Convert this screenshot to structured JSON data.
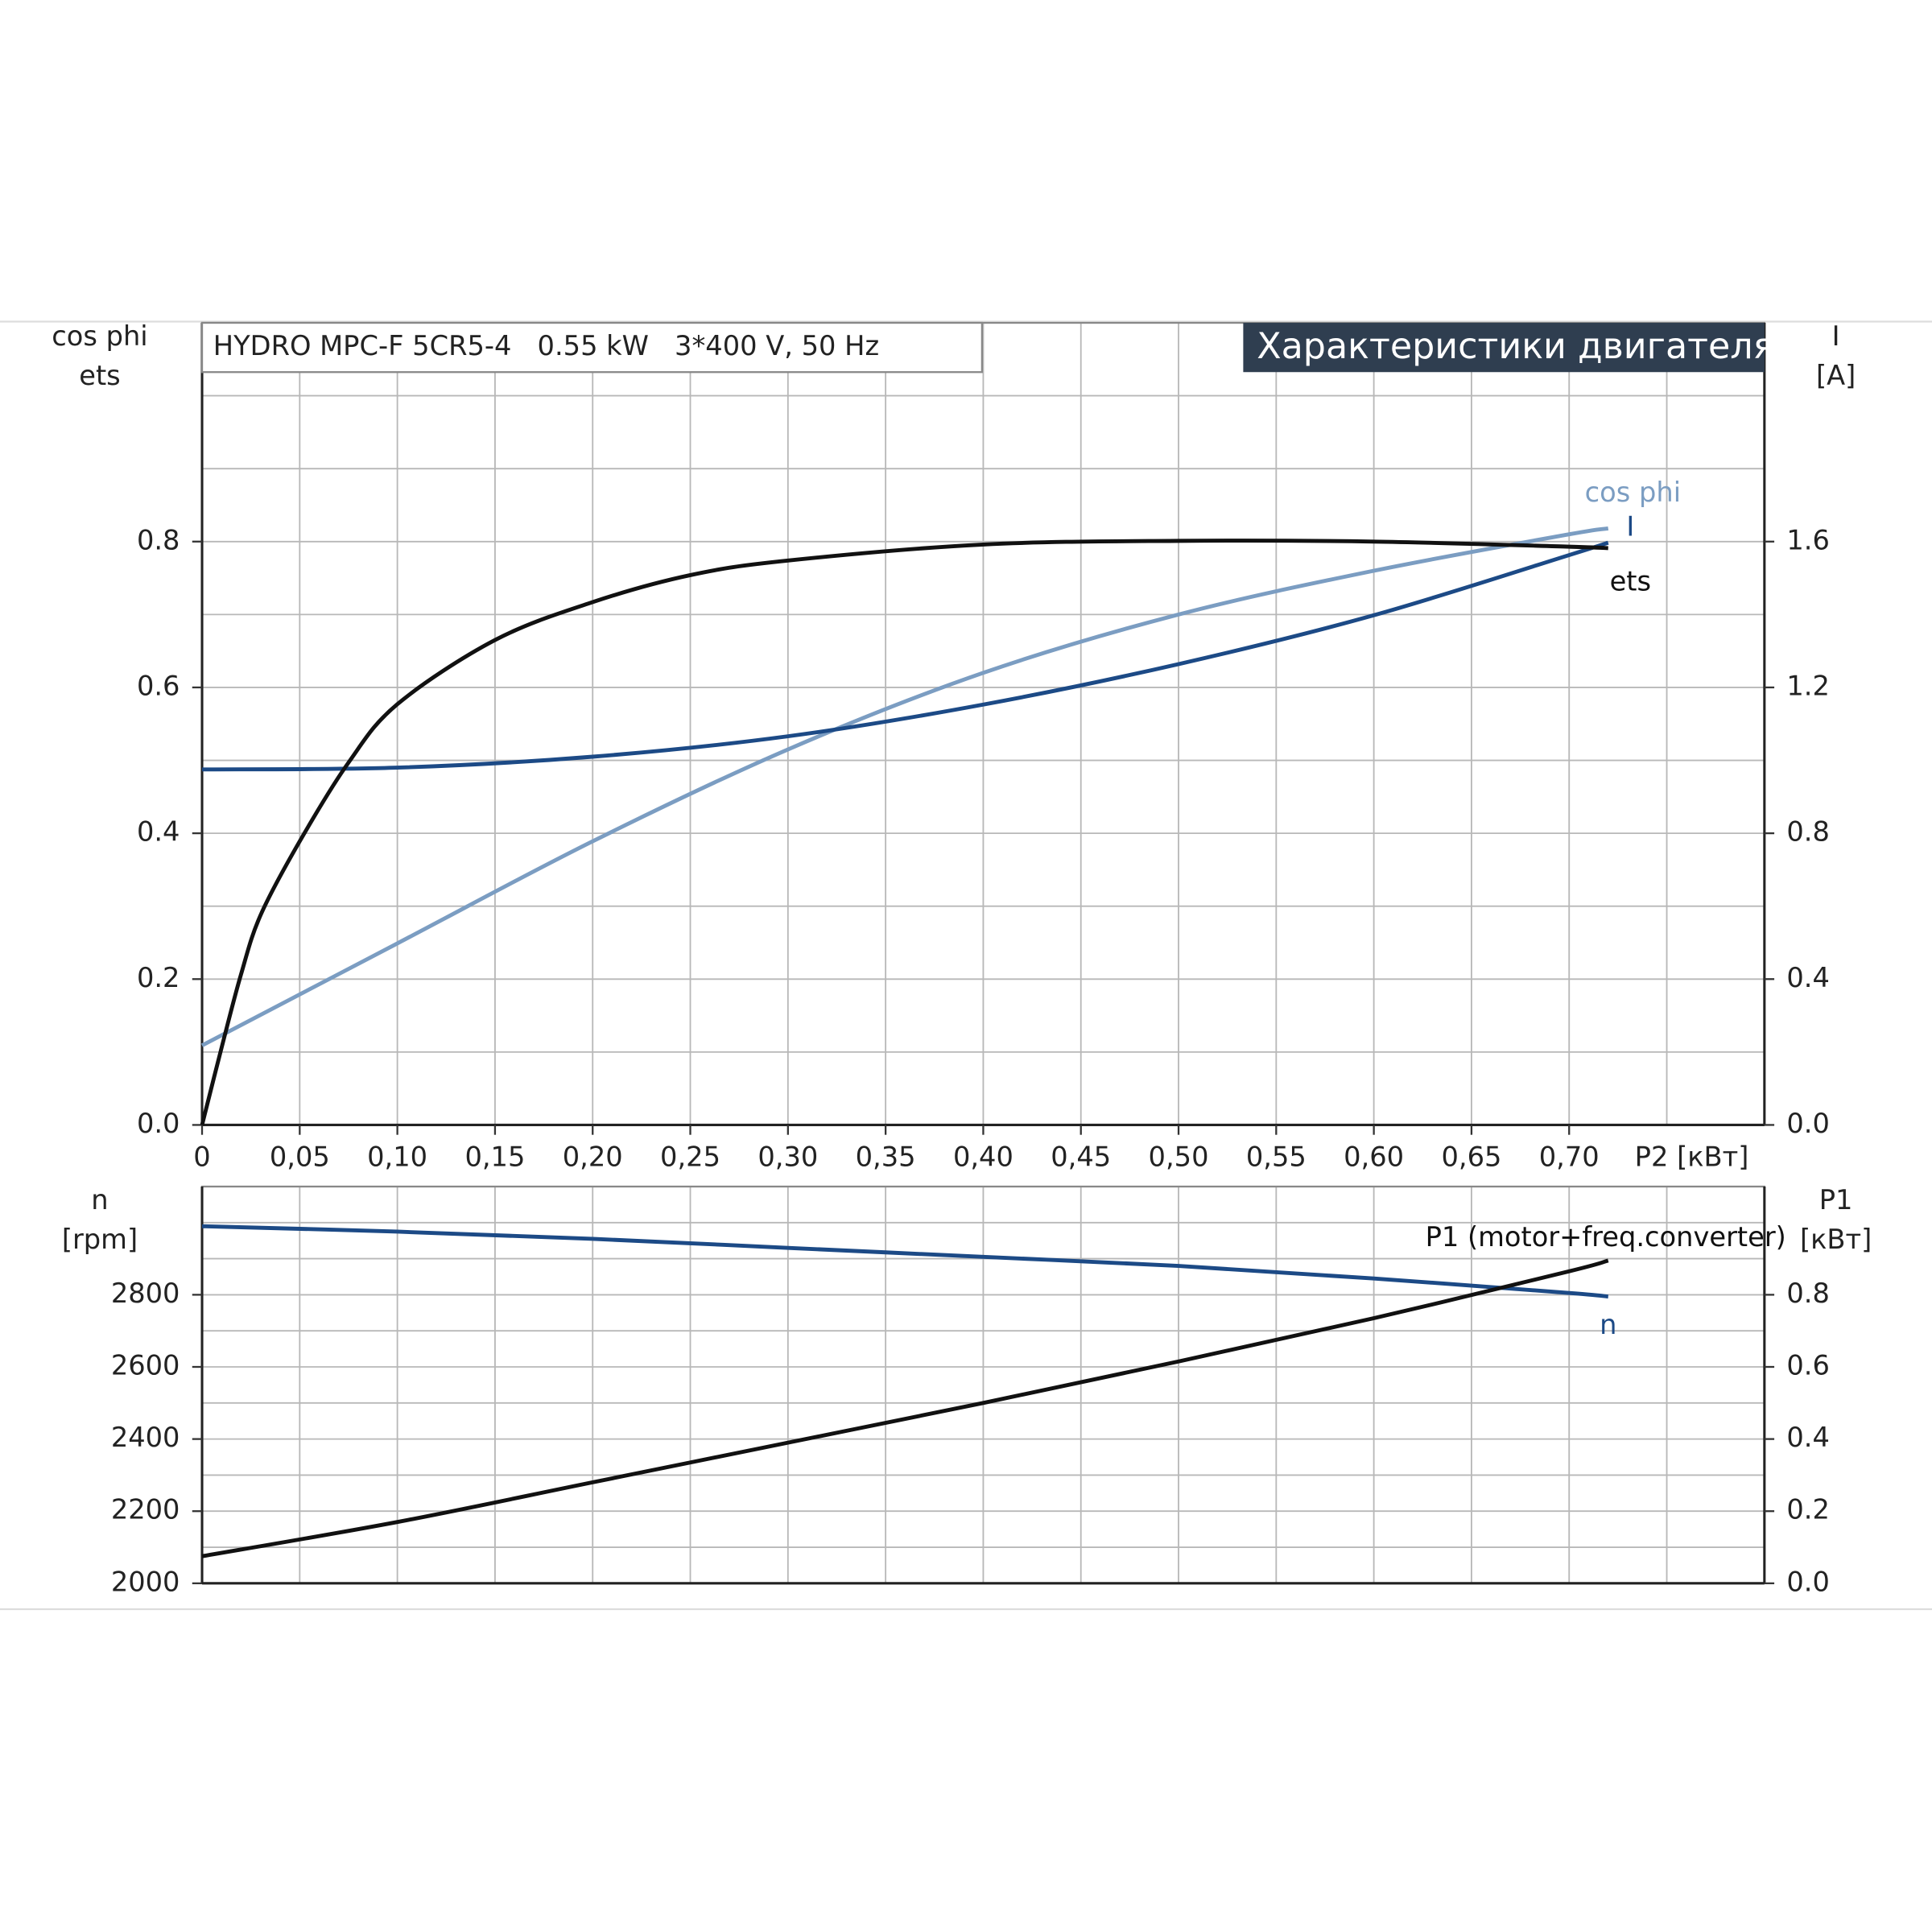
{
  "chart_data": [
    {
      "type": "line",
      "title": "HYDRO MPC-F 5CR5-4   0.55 kW   3*400 V, 50 Hz",
      "banner": "Характеристики двигателя",
      "ylabel": [
        "cos phi",
        "ets"
      ],
      "y2label": [
        "I",
        "[A]"
      ],
      "xlabel": "P2 [кВт]",
      "xlim": [
        0,
        0.8
      ],
      "xticks": [
        0,
        {
          "value": 0.05,
          "label": "0,05"
        },
        {
          "value": 0.1,
          "label": "0,10"
        },
        {
          "value": 0.15,
          "label": "0,15"
        },
        {
          "value": 0.2,
          "label": "0,20"
        },
        {
          "value": 0.25,
          "label": "0,25"
        },
        {
          "value": 0.3,
          "label": "0,30"
        },
        {
          "value": 0.35,
          "label": "0,35"
        },
        {
          "value": 0.4,
          "label": "0,40"
        },
        {
          "value": 0.45,
          "label": "0,45"
        },
        {
          "value": 0.5,
          "label": "0,50"
        },
        {
          "value": 0.55,
          "label": "0,55"
        },
        {
          "value": 0.6,
          "label": "0,60"
        },
        {
          "value": 0.65,
          "label": "0,65"
        },
        {
          "value": 0.7,
          "label": "0,70"
        }
      ],
      "xgrid": [
        0.75
      ],
      "ylim": [
        0,
        1.1
      ],
      "yticks": [
        {
          "value": 0,
          "label": "0.0"
        },
        0.2,
        0.4,
        0.6,
        0.8
      ],
      "ygrid": [
        0.1,
        0.3,
        0.5,
        0.7,
        0.9,
        1.0
      ],
      "y2lim": [
        0,
        2.2
      ],
      "y2ticks": [
        {
          "value": 0,
          "label": "0.0"
        },
        0.4,
        0.8,
        1.2,
        1.6
      ],
      "grid": true,
      "series": [
        {
          "name": "cos phi",
          "color": "#7b9dc2",
          "x": [
            0,
            0.1,
            0.2,
            0.3,
            0.4,
            0.5,
            0.6,
            0.7,
            0.72
          ],
          "values": [
            0.109,
            0.249,
            0.389,
            0.515,
            0.62,
            0.7,
            0.76,
            0.81,
            0.818
          ]
        },
        {
          "name": "I",
          "color": "#1c4a86",
          "axis": "y2",
          "x": [
            0,
            0.1,
            0.2,
            0.3,
            0.4,
            0.5,
            0.6,
            0.7,
            0.72
          ],
          "values": [
            0.975,
            0.98,
            1.01,
            1.066,
            1.153,
            1.264,
            1.398,
            1.563,
            1.597
          ]
        },
        {
          "name": "ets",
          "color": "#111111",
          "x": [
            0,
            0.01,
            0.02,
            0.03,
            0.05,
            0.075,
            0.1,
            0.15,
            0.2,
            0.25,
            0.3,
            0.4,
            0.5,
            0.6,
            0.7,
            0.72
          ],
          "values": [
            0,
            0.106,
            0.207,
            0.288,
            0.389,
            0.497,
            0.577,
            0.665,
            0.717,
            0.754,
            0.774,
            0.796,
            0.801,
            0.8,
            0.793,
            0.791
          ]
        }
      ]
    },
    {
      "type": "line",
      "ylabel": [
        "n",
        "[rpm]"
      ],
      "y2label": [
        "P1",
        "[кВт]"
      ],
      "xlim": [
        0,
        0.8
      ],
      "xgrid": [
        0.05,
        0.1,
        0.15,
        0.2,
        0.25,
        0.3,
        0.35,
        0.4,
        0.45,
        0.5,
        0.55,
        0.6,
        0.65,
        0.7,
        0.75
      ],
      "ylim": [
        2000,
        3100
      ],
      "yticks": [
        2000,
        2200,
        2400,
        2600,
        2800
      ],
      "ygrid": [
        2100,
        2300,
        2500,
        2700,
        2900,
        3000
      ],
      "y2lim": [
        0,
        1.1
      ],
      "y2ticks": [
        {
          "value": 0,
          "label": "0.0"
        },
        0.2,
        0.4,
        0.6,
        0.8
      ],
      "grid": true,
      "series": [
        {
          "name": "n",
          "color": "#1c4a86",
          "x": [
            0,
            0.1,
            0.2,
            0.3,
            0.4,
            0.5,
            0.6,
            0.7,
            0.72
          ],
          "values": [
            2990,
            2975,
            2955,
            2930,
            2905,
            2880,
            2845,
            2805,
            2795
          ]
        },
        {
          "name": "P1 (motor+freq.converter)",
          "color": "#111111",
          "axis": "y2",
          "x": [
            0,
            0.1,
            0.2,
            0.3,
            0.4,
            0.5,
            0.6,
            0.7,
            0.72
          ],
          "values": [
            0.075,
            0.17,
            0.28,
            0.39,
            0.5,
            0.615,
            0.735,
            0.865,
            0.895
          ]
        }
      ]
    }
  ]
}
